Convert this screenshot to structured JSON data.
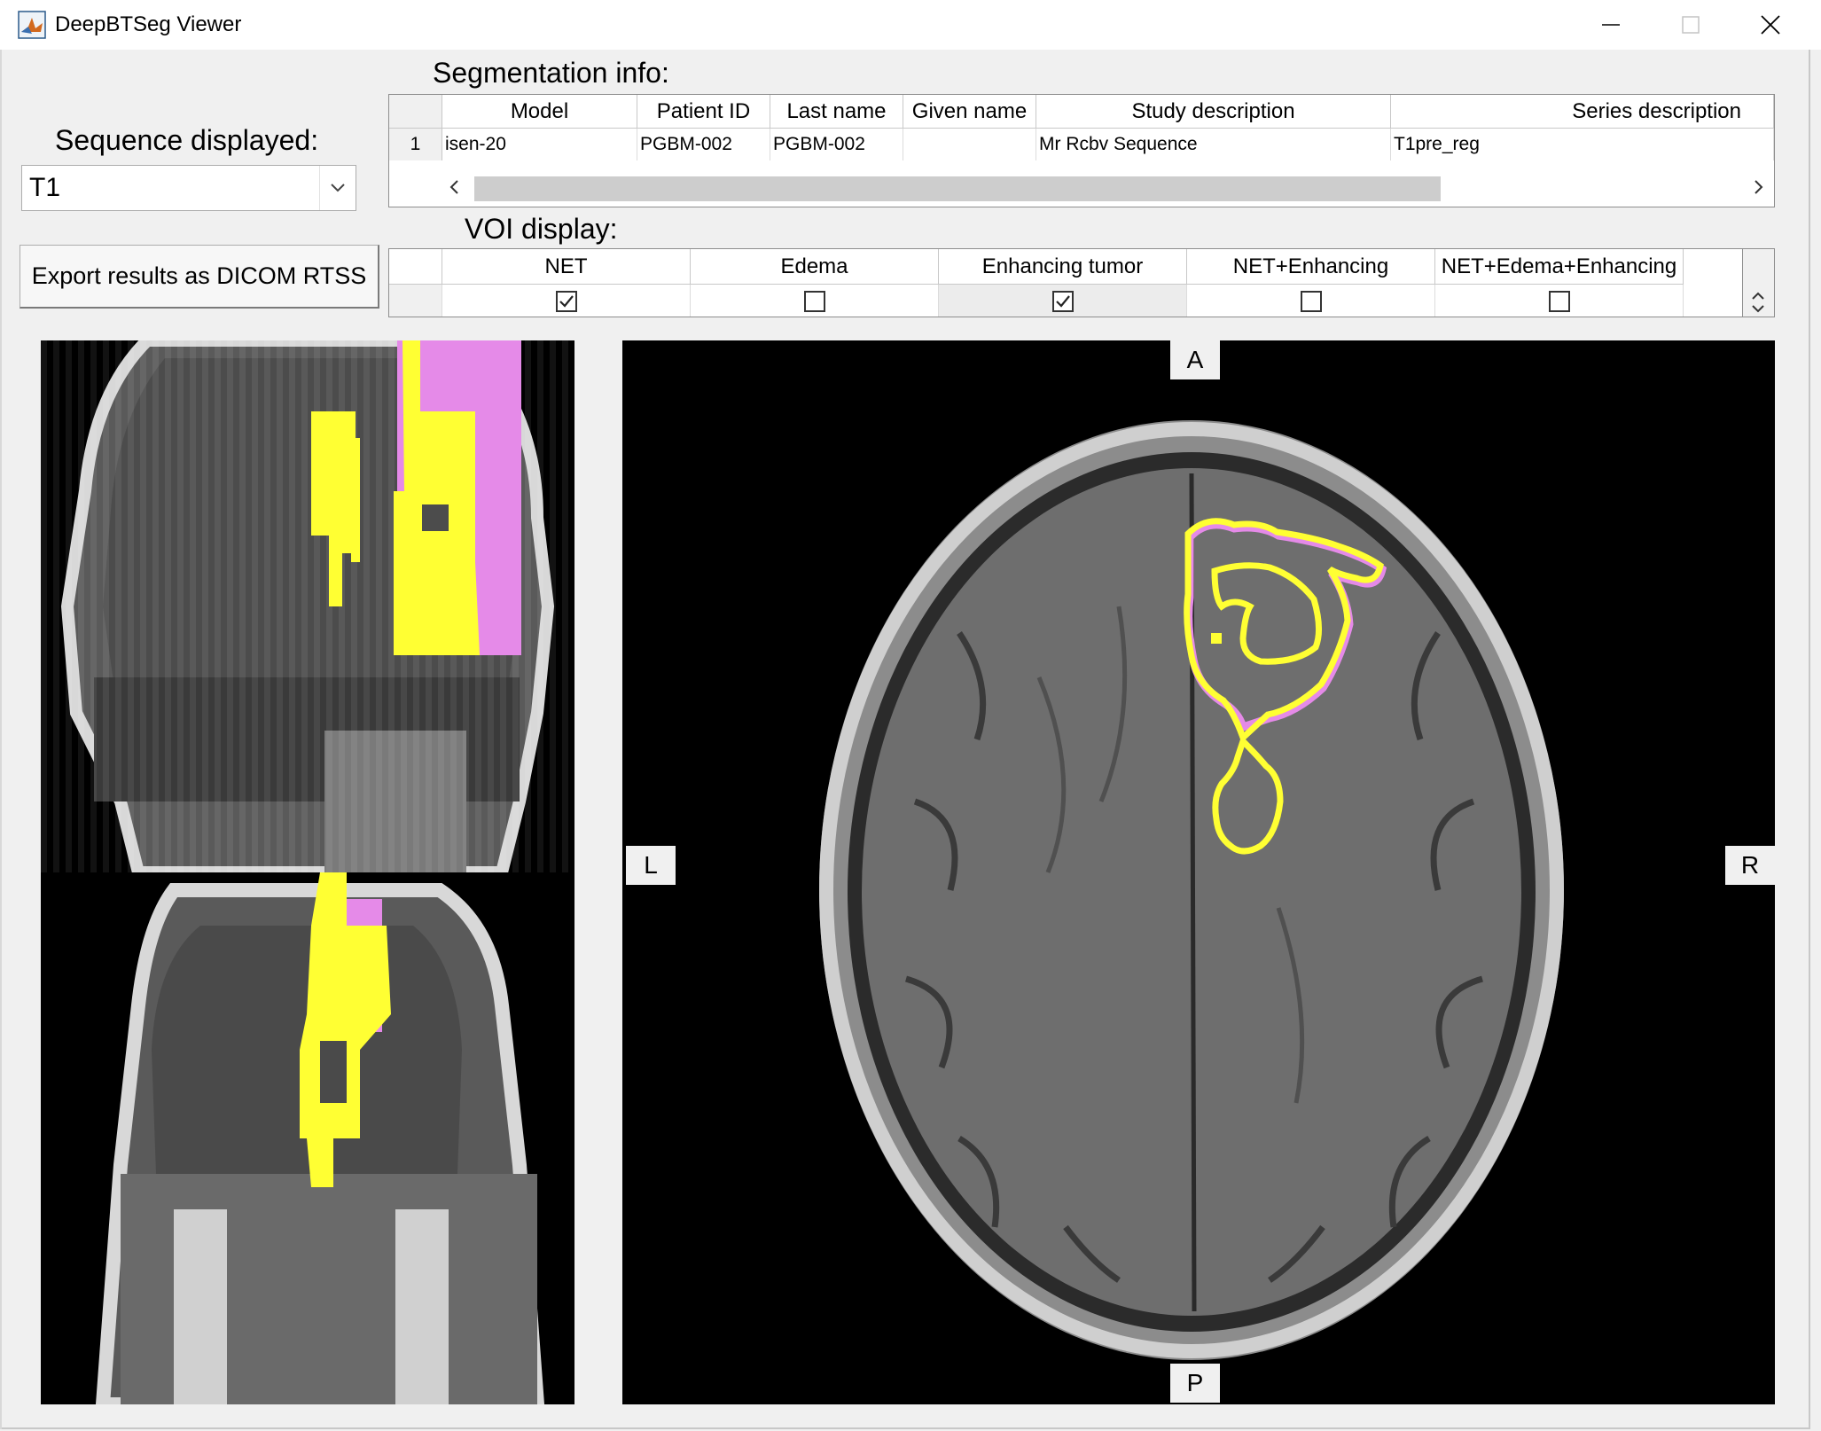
{
  "window": {
    "title": "DeepBTSeg Viewer",
    "icons": {
      "app": "matlab-icon",
      "minimize": "minimize-icon",
      "maximize": "maximize-icon",
      "close": "close-icon"
    }
  },
  "sequence": {
    "label": "Sequence displayed:",
    "selected": "T1"
  },
  "export_button": {
    "label": "Export results as DICOM RTSS"
  },
  "segmentation_info": {
    "label": "Segmentation info:",
    "columns": [
      "Model",
      "Patient ID",
      "Last name",
      "Given name",
      "Study description",
      "Series description"
    ],
    "rows": [
      {
        "index": "1",
        "cells": [
          "isen-20",
          "PGBM-002",
          "PGBM-002",
          "",
          "Mr Rcbv Sequence",
          "T1pre_reg"
        ]
      }
    ]
  },
  "voi_display": {
    "label": "VOI display:",
    "columns": [
      {
        "label": "NET",
        "checked": true
      },
      {
        "label": "Edema",
        "checked": false
      },
      {
        "label": "Enhancing tumor",
        "checked": true
      },
      {
        "label": "NET+Enhancing",
        "checked": false
      },
      {
        "label": "NET+Edema+Enhancing",
        "checked": false
      }
    ]
  },
  "viewer": {
    "orientation": {
      "anterior": "A",
      "posterior": "P",
      "left": "L",
      "right": "R"
    },
    "colors": {
      "net_contour": "#ffff33",
      "enhancing_contour": "#e58ae8",
      "background": "#000000"
    }
  }
}
